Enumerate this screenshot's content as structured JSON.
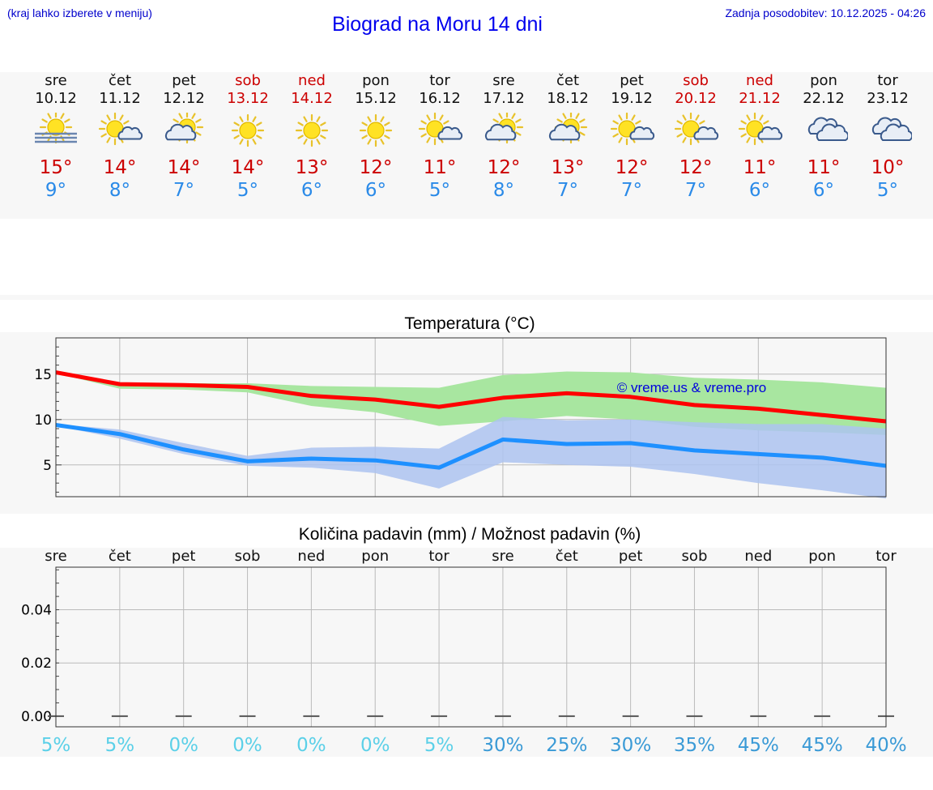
{
  "header": {
    "menu_hint": "(kraj lahko izberete v meniju)",
    "title": "Biograd na Moru 14 dni",
    "last_update": "Zadnja posodobitev: 10.12.2025 - 04:26"
  },
  "forecast": {
    "days": [
      {
        "name": "sre",
        "date": "10.12",
        "icon": "sun-fog-icon",
        "tmax": "15°",
        "tmin": "9°",
        "weekend": false
      },
      {
        "name": "čet",
        "date": "11.12",
        "icon": "sun-cloud-icon",
        "tmax": "14°",
        "tmin": "8°",
        "weekend": false
      },
      {
        "name": "pet",
        "date": "12.12",
        "icon": "partly-cloudy-icon",
        "tmax": "14°",
        "tmin": "7°",
        "weekend": false
      },
      {
        "name": "sob",
        "date": "13.12",
        "icon": "sun-icon",
        "tmax": "14°",
        "tmin": "5°",
        "weekend": true
      },
      {
        "name": "ned",
        "date": "14.12",
        "icon": "sun-icon",
        "tmax": "13°",
        "tmin": "6°",
        "weekend": true
      },
      {
        "name": "pon",
        "date": "15.12",
        "icon": "sun-icon",
        "tmax": "12°",
        "tmin": "6°",
        "weekend": false
      },
      {
        "name": "tor",
        "date": "16.12",
        "icon": "sun-cloud-icon",
        "tmax": "11°",
        "tmin": "5°",
        "weekend": false
      },
      {
        "name": "sre",
        "date": "17.12",
        "icon": "partly-cloudy-icon",
        "tmax": "12°",
        "tmin": "8°",
        "weekend": false
      },
      {
        "name": "čet",
        "date": "18.12",
        "icon": "partly-cloudy-icon",
        "tmax": "13°",
        "tmin": "7°",
        "weekend": false
      },
      {
        "name": "pet",
        "date": "19.12",
        "icon": "sun-cloud-icon",
        "tmax": "12°",
        "tmin": "7°",
        "weekend": false
      },
      {
        "name": "sob",
        "date": "20.12",
        "icon": "sun-cloud-icon",
        "tmax": "12°",
        "tmin": "7°",
        "weekend": true
      },
      {
        "name": "ned",
        "date": "21.12",
        "icon": "sun-cloud-icon",
        "tmax": "11°",
        "tmin": "6°",
        "weekend": true
      },
      {
        "name": "pon",
        "date": "22.12",
        "icon": "cloudy-icon",
        "tmax": "11°",
        "tmin": "6°",
        "weekend": false
      },
      {
        "name": "tor",
        "date": "23.12",
        "icon": "cloudy-icon",
        "tmax": "10°",
        "tmin": "5°",
        "weekend": false
      }
    ]
  },
  "colors": {
    "title_blue": "#0000ee",
    "weekend_red": "#cc0000",
    "tmax_red": "#cc0000",
    "tmin_blue": "#2a8ae8",
    "max_line": "#ff0000",
    "min_line": "#1e90ff",
    "max_band": "#a8e6a0",
    "min_band": "#adc3f0",
    "overlap_band": "#80c7a6",
    "precip_low": "#5bd0e8",
    "precip_high": "#3a9ad6"
  },
  "chart_data": [
    {
      "type": "line",
      "title": "Temperatura (°C)",
      "watermark": "© vreme.us & vreme.pro",
      "categories": [
        "10.12",
        "11.12",
        "12.12",
        "13.12",
        "14.12",
        "15.12",
        "16.12",
        "17.12",
        "18.12",
        "19.12",
        "20.12",
        "21.12",
        "22.12",
        "23.12"
      ],
      "ylim": [
        1.5,
        19
      ],
      "yticks": [
        5,
        10,
        15
      ],
      "grid": true,
      "series": [
        {
          "name": "max",
          "values": [
            15.2,
            13.9,
            13.8,
            13.6,
            12.6,
            12.2,
            11.4,
            12.4,
            12.9,
            12.5,
            11.6,
            11.2,
            10.5,
            9.8
          ]
        },
        {
          "name": "min",
          "values": [
            9.4,
            8.4,
            6.7,
            5.4,
            5.7,
            5.5,
            4.7,
            7.8,
            7.3,
            7.4,
            6.6,
            6.2,
            5.8,
            4.9
          ]
        },
        {
          "name": "max_range_low",
          "values": [
            15.1,
            13.4,
            13.3,
            13.0,
            11.5,
            10.8,
            9.3,
            9.8,
            10.4,
            10.0,
            9.2,
            8.8,
            8.6,
            8.3
          ]
        },
        {
          "name": "max_range_high",
          "values": [
            15.3,
            14.1,
            14.0,
            14.0,
            13.7,
            13.6,
            13.5,
            14.9,
            15.3,
            15.2,
            14.6,
            14.4,
            14.1,
            13.5
          ]
        },
        {
          "name": "min_range_low",
          "values": [
            9.3,
            7.9,
            6.2,
            4.9,
            4.7,
            4.1,
            2.4,
            5.3,
            5.0,
            4.8,
            4.0,
            3.0,
            2.2,
            1.3
          ]
        },
        {
          "name": "min_range_high",
          "values": [
            9.5,
            8.9,
            7.4,
            6.0,
            6.9,
            7.0,
            6.8,
            10.3,
            9.9,
            10.0,
            9.7,
            9.5,
            9.5,
            9.0
          ]
        }
      ]
    },
    {
      "type": "bar",
      "title": "Količina padavin (mm) / Možnost padavin (%)",
      "categories": [
        "sre",
        "čet",
        "pet",
        "sob",
        "ned",
        "pon",
        "tor",
        "sre",
        "čet",
        "pet",
        "sob",
        "ned",
        "pon",
        "tor"
      ],
      "values": [
        0,
        0,
        0,
        0,
        0,
        0,
        0,
        0,
        0,
        0,
        0,
        0,
        0,
        0
      ],
      "ylim": [
        -0.004,
        0.056
      ],
      "yticks": [
        "0.00",
        "0.02",
        "0.04"
      ],
      "chance": [
        "5%",
        "5%",
        "0%",
        "0%",
        "0%",
        "0%",
        "5%",
        "30%",
        "25%",
        "30%",
        "35%",
        "45%",
        "45%",
        "40%"
      ],
      "grid": true
    }
  ]
}
